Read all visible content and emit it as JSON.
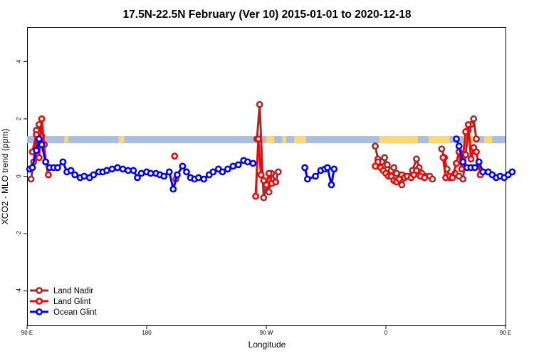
{
  "chart_data": {
    "type": "line",
    "title": "17.5N-22.5N February (Ver 10)   2015-01-01 to 2020-12-18",
    "xlabel": "Longitude",
    "ylabel": "XCO2 - MLO trend (ppm)",
    "xlim": [
      90,
      450
    ],
    "ylim": [
      -5.2,
      5.2
    ],
    "x_ticks": [
      {
        "value": 90,
        "label": "90 E"
      },
      {
        "value": 180,
        "label": "180"
      },
      {
        "value": 270,
        "label": "90 W"
      },
      {
        "value": 360,
        "label": "0"
      },
      {
        "value": 450,
        "label": "90 E"
      },
      {
        "value": 540,
        "label": "180"
      }
    ],
    "y_ticks": [
      -4,
      -2,
      0,
      2,
      4
    ],
    "grid": false,
    "legend_position": "bottom-left",
    "colors": {
      "land_nadir": "#a52a2a",
      "land_glint": "#ff0000",
      "ocean_glint": "#0000ff",
      "surface_ocean": "#a7bfe0",
      "surface_land": "#fbd970"
    },
    "surface_band": {
      "y_range": [
        1.15,
        1.4
      ],
      "land_segments": [
        [
          118,
          121
        ],
        [
          159,
          163
        ],
        [
          270,
          276
        ],
        [
          282,
          285
        ],
        [
          291,
          300
        ],
        [
          355,
          384
        ],
        [
          392,
          408
        ],
        [
          418,
          428
        ],
        [
          434,
          440
        ]
      ]
    },
    "series": [
      {
        "name": "Land Nadir",
        "color": "#a52a2a",
        "segments": [
          [
            [
              93,
              -0.1
            ],
            [
              95,
              0.5
            ],
            [
              97,
              1.6
            ],
            [
              99,
              1.8
            ],
            [
              101,
              1.4
            ],
            [
              103,
              1.1
            ]
          ],
          [
            [
              202,
              -0.1
            ]
          ],
          [
            [
              263,
              1.3
            ],
            [
              265,
              2.5
            ],
            [
              268,
              -0.75
            ],
            [
              270,
              -0.3
            ],
            [
              272,
              -0.55
            ],
            [
              274,
              0.1
            ],
            [
              277,
              -0.2
            ],
            [
              279,
              0.15
            ]
          ],
          [
            [
              352,
              1.05
            ],
            [
              354,
              0.6
            ],
            [
              357,
              0.5
            ],
            [
              359,
              0.65
            ],
            [
              361,
              0.4
            ],
            [
              364,
              0.2
            ],
            [
              366,
              0.3
            ],
            [
              368,
              0.1
            ],
            [
              370,
              -0.1
            ],
            [
              372,
              -0.3
            ],
            [
              375,
              0.0
            ],
            [
              378,
              0.0
            ],
            [
              380,
              0.2
            ],
            [
              383,
              0.6
            ],
            [
              385,
              0.3
            ],
            [
              387,
              0.1
            ],
            [
              390,
              0.0
            ],
            [
              393,
              0.0
            ],
            [
              395,
              -0.1
            ]
          ],
          [
            [
              402,
              0.95
            ],
            [
              404,
              0.65
            ],
            [
              406,
              0.25
            ],
            [
              408,
              -0.05
            ],
            [
              410,
              0.0
            ],
            [
              412,
              0.1
            ],
            [
              415,
              0.0
            ],
            [
              418,
              -0.1
            ],
            [
              420,
              0.75
            ],
            [
              422,
              1.6
            ],
            [
              424,
              1.8
            ],
            [
              426,
              2.0
            ],
            [
              428,
              1.3
            ]
          ]
        ]
      },
      {
        "name": "Land Glint",
        "color": "#ff0000",
        "segments": [
          [
            [
              94,
              0.85
            ],
            [
              97,
              1.45
            ],
            [
              99,
              0.65
            ],
            [
              101,
              2.0
            ],
            [
              104,
              0.5
            ],
            [
              106,
              0.05
            ]
          ],
          [
            [
              201,
              0.7
            ]
          ],
          [
            [
              262,
              -0.7
            ],
            [
              264,
              1.3
            ],
            [
              266,
              0.05
            ],
            [
              268,
              -0.15
            ],
            [
              270,
              -0.3
            ],
            [
              272,
              0.1
            ],
            [
              274,
              -0.25
            ],
            [
              277,
              -0.2
            ]
          ],
          [
            [
              352,
              0.35
            ],
            [
              354,
              0.5
            ],
            [
              356,
              0.3
            ],
            [
              358,
              0.2
            ],
            [
              360,
              0.1
            ],
            [
              362,
              0.0
            ],
            [
              364,
              0.0
            ],
            [
              366,
              -0.15
            ],
            [
              368,
              -0.2
            ],
            [
              370,
              -0.1
            ],
            [
              372,
              0.05
            ],
            [
              374,
              -0.05
            ],
            [
              376,
              0.0
            ],
            [
              379,
              -0.05
            ],
            [
              381,
              0.05
            ],
            [
              383,
              0.2
            ],
            [
              386,
              0.0
            ],
            [
              389,
              -0.05
            ]
          ],
          [
            [
              403,
              0.65
            ],
            [
              405,
              -0.05
            ],
            [
              408,
              0.0
            ],
            [
              410,
              -0.05
            ],
            [
              413,
              0.45
            ],
            [
              415,
              0.85
            ],
            [
              417,
              0.25
            ],
            [
              420,
              1.55
            ],
            [
              422,
              1.8
            ],
            [
              424,
              0.6
            ],
            [
              426,
              1.0
            ],
            [
              428,
              0.85
            ],
            [
              431,
              0.05
            ]
          ]
        ]
      },
      {
        "name": "Ocean Glint",
        "color": "#0000ff",
        "segments": [
          [
            [
              92,
              0.25
            ],
            [
              94,
              0.3
            ],
            [
              97,
              0.9
            ],
            [
              99,
              1.3
            ],
            [
              101,
              1.1
            ],
            [
              104,
              0.5
            ],
            [
              107,
              0.3
            ],
            [
              110,
              0.3
            ],
            [
              113,
              0.3
            ],
            [
              117,
              0.5
            ],
            [
              120,
              0.15
            ],
            [
              123,
              0.2
            ],
            [
              126,
              0.05
            ],
            [
              130,
              -0.05
            ],
            [
              133,
              0.0
            ],
            [
              137,
              -0.05
            ],
            [
              140,
              0.05
            ],
            [
              144,
              0.15
            ],
            [
              147,
              0.15
            ],
            [
              150,
              0.2
            ],
            [
              154,
              0.25
            ],
            [
              158,
              0.3
            ],
            [
              162,
              0.25
            ],
            [
              166,
              0.2
            ],
            [
              170,
              0.2
            ],
            [
              173,
              -0.05
            ],
            [
              176,
              0.1
            ],
            [
              180,
              0.15
            ],
            [
              183,
              0.1
            ],
            [
              187,
              0.1
            ],
            [
              190,
              0.05
            ],
            [
              193,
              0.0
            ],
            [
              197,
              0.15
            ],
            [
              200,
              -0.45
            ],
            [
              203,
              0.05
            ],
            [
              207,
              0.35
            ],
            [
              210,
              0.15
            ],
            [
              213,
              -0.05
            ],
            [
              216,
              -0.1
            ],
            [
              219,
              -0.05
            ],
            [
              223,
              -0.1
            ],
            [
              227,
              0.05
            ],
            [
              230,
              0.15
            ],
            [
              234,
              0.25
            ],
            [
              237,
              0.15
            ],
            [
              241,
              0.25
            ],
            [
              245,
              0.35
            ],
            [
              249,
              0.4
            ],
            [
              253,
              0.55
            ],
            [
              256,
              0.5
            ],
            [
              260,
              0.45
            ]
          ],
          [
            [
              299,
              0.3
            ],
            [
              301,
              -0.1
            ],
            [
              307,
              0.0
            ],
            [
              311,
              0.2
            ],
            [
              314,
              0.25
            ],
            [
              316,
              0.3
            ],
            [
              319,
              -0.3
            ],
            [
              321,
              0.25
            ]
          ],
          [
            [
              413,
              1.3
            ],
            [
              415,
              1.05
            ],
            [
              418,
              0.5
            ],
            [
              421,
              0.3
            ],
            [
              424,
              0.3
            ],
            [
              427,
              0.3
            ],
            [
              430,
              0.5
            ],
            [
              433,
              0.15
            ],
            [
              437,
              0.15
            ],
            [
              440,
              0.05
            ],
            [
              443,
              -0.05
            ],
            [
              446,
              0.0
            ],
            [
              449,
              -0.05
            ],
            [
              452,
              0.05
            ],
            [
              455,
              0.15
            ]
          ]
        ]
      }
    ]
  }
}
